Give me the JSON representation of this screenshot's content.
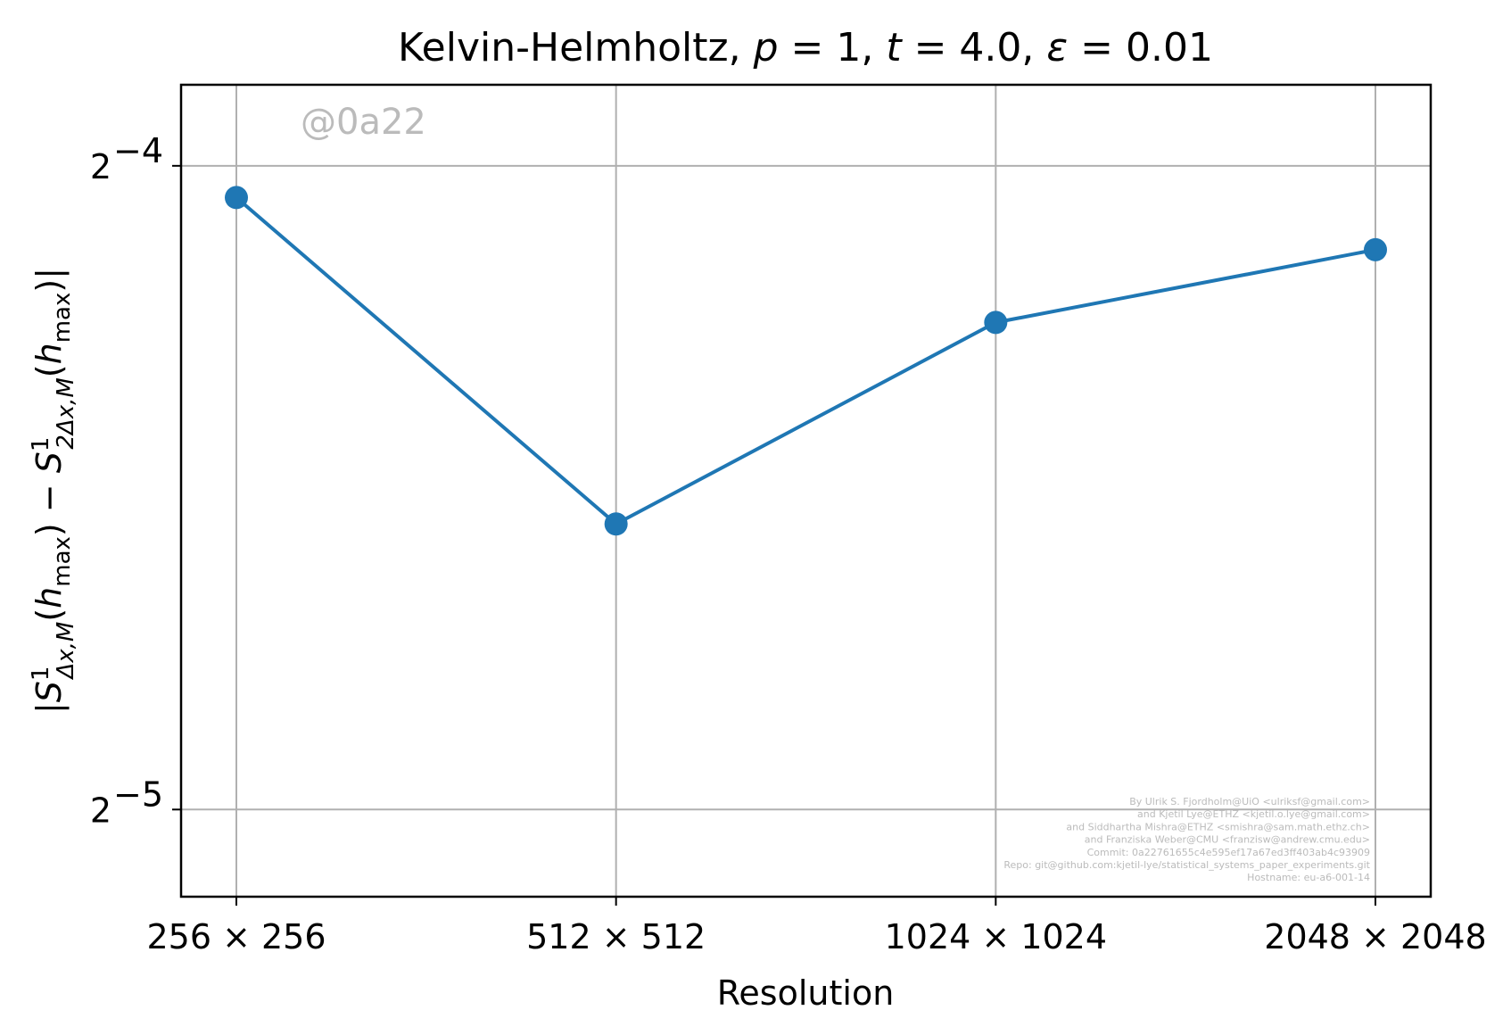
{
  "chart_data": {
    "type": "line",
    "title": "Kelvin-Helmholtz, p = 1, t = 4.0, ε = 0.01",
    "xlabel": "Resolution",
    "ylabel": "|S¹Δx,M(hmax) − S¹2Δx,M(hmax)|",
    "categories": [
      "256 × 256",
      "512 × 512",
      "1024 × 1024",
      "2048 × 2048"
    ],
    "y_scale": "log2",
    "yticks": [
      {
        "value": 0.0625,
        "base": "2",
        "exp": "−4"
      },
      {
        "value": 0.03125,
        "base": "2",
        "exp": "−5"
      }
    ],
    "ylim": [
      0.02845,
      0.0682
    ],
    "grid": true,
    "series": [
      {
        "values": [
          0.0604,
          0.0425,
          0.0528,
          0.0571
        ],
        "color": "#1f77b4",
        "marker": "circle"
      }
    ],
    "watermark": "@0a22",
    "credits": [
      "By Ulrik S. Fjordholm@UiO <ulriksf@gmail.com>",
      "and Kjetil Lye@ETHZ <kjetil.o.lye@gmail.com>",
      "and Siddhartha Mishra@ETHZ <smishra@sam.math.ethz.ch>",
      "and Franziska Weber@CMU <franzisw@andrew.cmu.edu>",
      "Commit: 0a22761655c4e595ef17a67ed3ff403ab4c93909",
      "Repo: git@github.com:kjetil-lye/statistical_systems_paper_experiments.git",
      "Hostname: eu-a6-001-14"
    ]
  }
}
